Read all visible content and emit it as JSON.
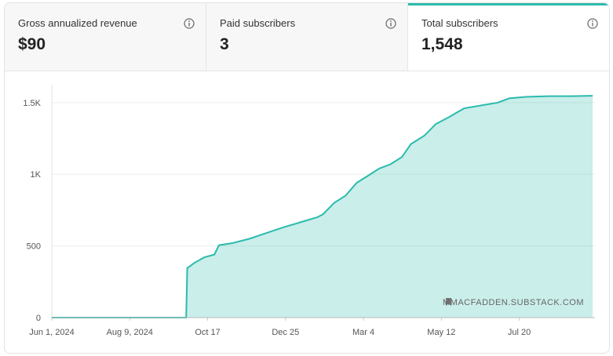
{
  "tabs": [
    {
      "label": "Gross annualized revenue",
      "value": "$90"
    },
    {
      "label": "Paid subscribers",
      "value": "3"
    },
    {
      "label": "Total subscribers",
      "value": "1,548"
    }
  ],
  "chart_data": {
    "type": "area",
    "color": "#2bbbad",
    "grid": true,
    "annotation": "MMACFADDEN.SUBSTACK.COM",
    "x": [
      0,
      119,
      120,
      126,
      135,
      144,
      148,
      160,
      175,
      190,
      205,
      220,
      235,
      240,
      250,
      260,
      270,
      280,
      290,
      300,
      310,
      318,
      330,
      340,
      352,
      365,
      380,
      395,
      405,
      420,
      440,
      460,
      479
    ],
    "values": [
      0,
      0,
      345,
      380,
      420,
      440,
      505,
      520,
      550,
      590,
      630,
      665,
      700,
      720,
      800,
      850,
      940,
      990,
      1040,
      1070,
      1120,
      1210,
      1270,
      1350,
      1400,
      1460,
      1480,
      1500,
      1530,
      1540,
      1545,
      1545,
      1548
    ],
    "xlim": [
      0,
      481
    ],
    "xticks": [
      {
        "value": 0,
        "label": "Jun 1, 2024"
      },
      {
        "value": 69,
        "label": "Aug 9, 2024"
      },
      {
        "value": 138,
        "label": "Oct 17"
      },
      {
        "value": 207,
        "label": "Dec 25"
      },
      {
        "value": 276,
        "label": "Mar 4"
      },
      {
        "value": 345,
        "label": "May 12"
      },
      {
        "value": 414,
        "label": "Jul 20"
      }
    ],
    "ylim": [
      0,
      1625
    ],
    "yticks": [
      0,
      500,
      {
        "value": 1000,
        "label": "1K"
      },
      {
        "value": 1500,
        "label": "1.5K"
      }
    ]
  }
}
